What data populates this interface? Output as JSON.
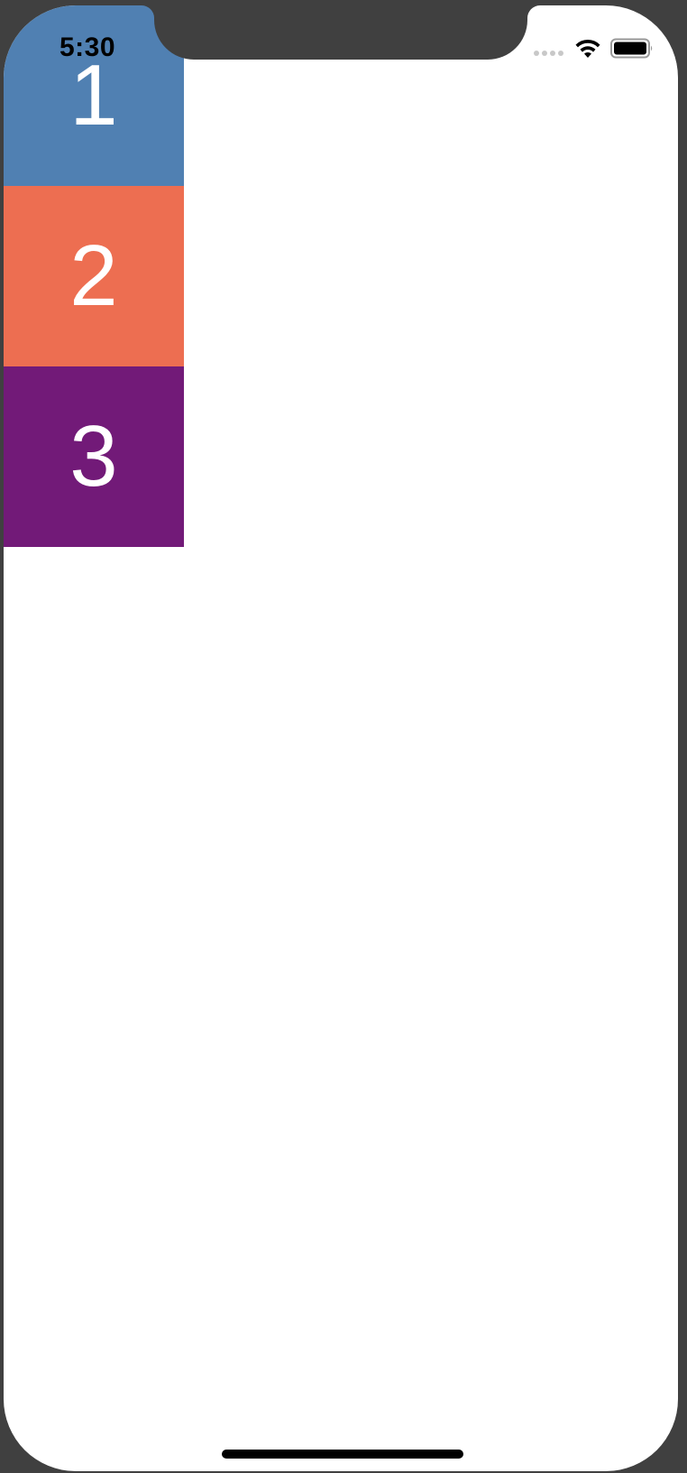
{
  "status_bar": {
    "time": "5:30",
    "signal_icon": "cellular-dots-icon",
    "wifi_icon": "wifi-icon",
    "battery_icon": "battery-full-icon"
  },
  "tiles": [
    {
      "label": "1",
      "color": "#5080b2"
    },
    {
      "label": "2",
      "color": "#ed6e51"
    },
    {
      "label": "3",
      "color": "#721a78"
    }
  ],
  "colors": {
    "bezel": "#404040",
    "screen": "#ffffff"
  }
}
